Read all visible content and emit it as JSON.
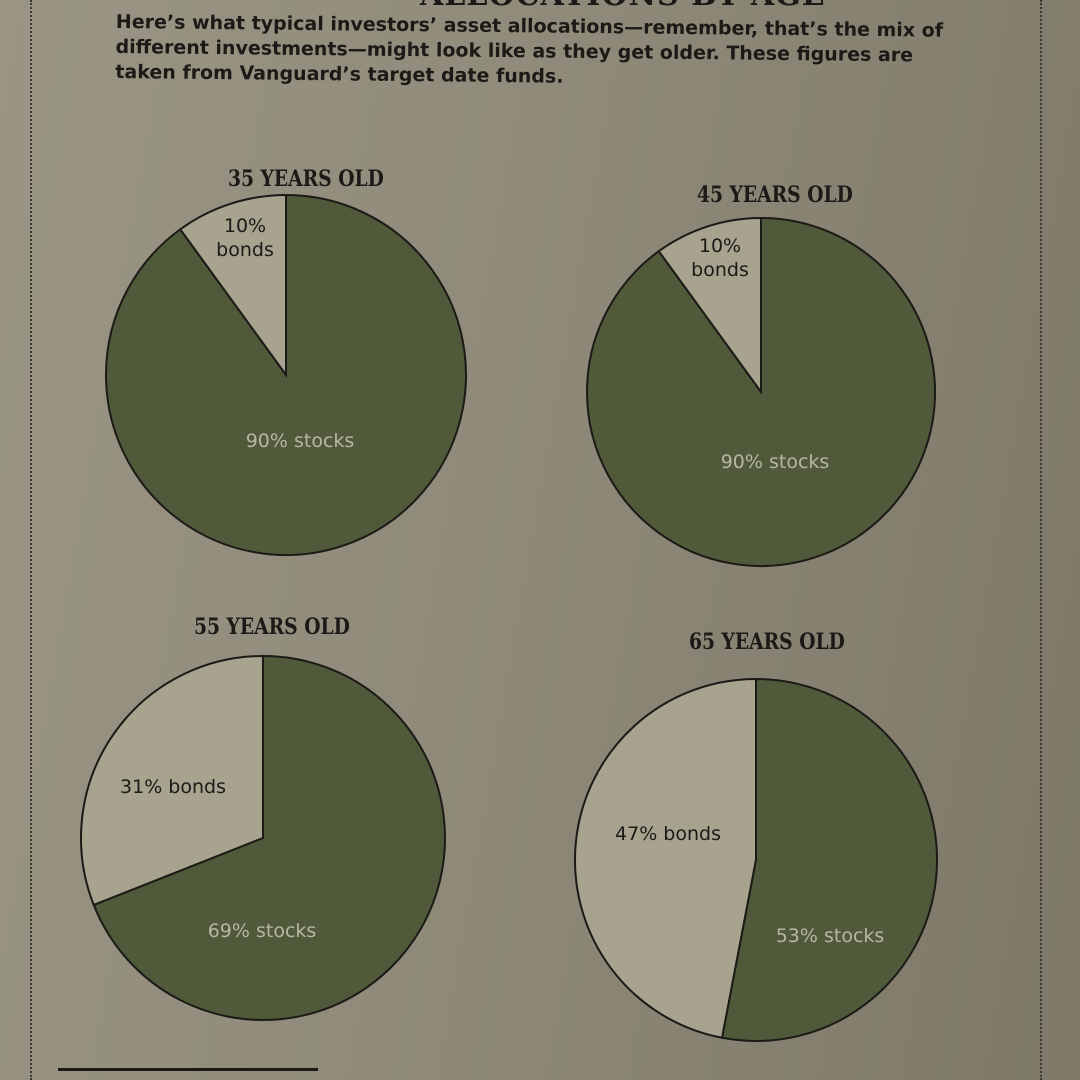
{
  "page": {
    "title": "ALLOCATIONS BY AGE",
    "intro": "Here’s what typical investors’ asset allocations—remember, that’s the mix of different investments—might look like as they get older. These figures are taken from Vanguard’s target date funds."
  },
  "colors": {
    "stocks": "#505a3b",
    "bonds": "#a7a38f",
    "outline": "#1c1a16"
  },
  "chart_data": [
    {
      "type": "pie",
      "title": "35 YEARS OLD",
      "slices": [
        {
          "label": "10% bonds",
          "value": 10
        },
        {
          "label": "90% stocks",
          "value": 90
        }
      ]
    },
    {
      "type": "pie",
      "title": "45 YEARS OLD",
      "slices": [
        {
          "label": "10% bonds",
          "value": 10
        },
        {
          "label": "90% stocks",
          "value": 90
        }
      ]
    },
    {
      "type": "pie",
      "title": "55 YEARS OLD",
      "slices": [
        {
          "label": "31% bonds",
          "value": 31
        },
        {
          "label": "69% stocks",
          "value": 69
        }
      ]
    },
    {
      "type": "pie",
      "title": "65 YEARS OLD",
      "slices": [
        {
          "label": "47% bonds",
          "value": 47
        },
        {
          "label": "53% stocks",
          "value": 53
        }
      ]
    }
  ]
}
